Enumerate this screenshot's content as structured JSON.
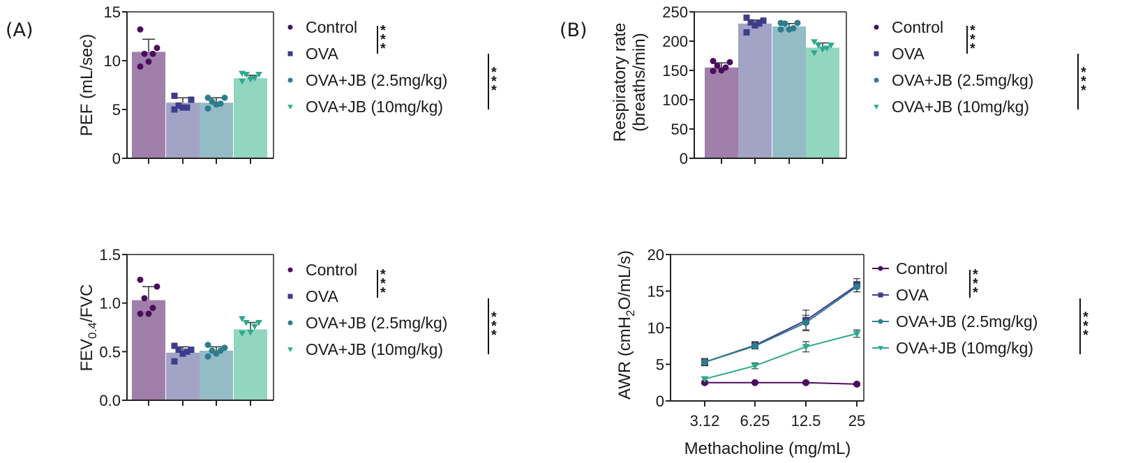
{
  "colors": {
    "Control": {
      "marker": "#4a0d5c",
      "bar": "#a07fab"
    },
    "OVA": {
      "marker": "#3e3d8c",
      "bar": "#a3a3c6"
    },
    "OVA+JB (2.5mg/kg)": {
      "marker": "#2d7d8d",
      "bar": "#94bcc7"
    },
    "OVA+JB (10mg/kg)": {
      "marker": "#2ea98c",
      "bar": "#92d6c0"
    }
  },
  "panel_labels": {
    "a": "(A)",
    "b": "(B)"
  },
  "chart_data": [
    {
      "id": "pef",
      "panel": "A",
      "type": "bar",
      "title": "",
      "ylabel": "PEF (mL/sec)",
      "xlabel": "",
      "ylim": [
        0,
        15
      ],
      "yticks": [
        "0",
        "5",
        "10",
        "15"
      ],
      "categories": [
        "Control",
        "OVA",
        "OVA+JB (2.5mg/kg)",
        "OVA+JB (10mg/kg)"
      ],
      "values": [
        10.9,
        5.7,
        5.7,
        8.2
      ],
      "errors": [
        1.3,
        0.5,
        0.5,
        0.3
      ],
      "points": [
        [
          13.2,
          11.3,
          10.7,
          10.7,
          9.9,
          9.4
        ],
        [
          6.4,
          6.0,
          5.4,
          5.2,
          5.2,
          5.0
        ],
        [
          6.2,
          6.2,
          5.8,
          5.6,
          5.5,
          5.1
        ],
        [
          8.7,
          8.6,
          8.6,
          8.2,
          8.1,
          7.9
        ]
      ],
      "marker_shapes": [
        "circle",
        "square",
        "circle",
        "triangle-down"
      ],
      "legend": [
        "Control",
        "OVA",
        "OVA+JB (2.5mg/kg)",
        "OVA+JB (10mg/kg)"
      ],
      "legend_position": "right",
      "significance": [
        {
          "groups": [
            "Control",
            "OVA"
          ],
          "label": "***"
        },
        {
          "groups": [
            "OVA",
            "OVA+JB (10mg/kg)"
          ],
          "label": "***"
        }
      ]
    },
    {
      "id": "fev",
      "panel": "A",
      "type": "bar",
      "title": "",
      "ylabel": "FEV0.4/FVC",
      "ylabel_main": "FEV",
      "ylabel_sub": "0.4",
      "ylabel_tail": "/FVC",
      "xlabel": "",
      "ylim": [
        0,
        1.5
      ],
      "yticks": [
        "0.0",
        "0.5",
        "1.0",
        "1.5"
      ],
      "categories": [
        "Control",
        "OVA",
        "OVA+JB (2.5mg/kg)",
        "OVA+JB (10mg/kg)"
      ],
      "values": [
        1.03,
        0.49,
        0.51,
        0.73
      ],
      "errors": [
        0.14,
        0.06,
        0.04,
        0.07
      ],
      "points": [
        [
          1.24,
          1.17,
          1.05,
          0.95,
          0.89,
          0.89
        ],
        [
          0.56,
          0.52,
          0.52,
          0.5,
          0.48,
          0.4
        ],
        [
          0.57,
          0.54,
          0.51,
          0.51,
          0.48,
          0.45
        ],
        [
          0.84,
          0.8,
          0.8,
          0.76,
          0.7,
          0.69
        ]
      ],
      "marker_shapes": [
        "circle",
        "square",
        "circle",
        "triangle-down"
      ],
      "legend": [
        "Control",
        "OVA",
        "OVA+JB (2.5mg/kg)",
        "OVA+JB (10mg/kg)"
      ],
      "legend_position": "right",
      "significance": [
        {
          "groups": [
            "Control",
            "OVA"
          ],
          "label": "***"
        },
        {
          "groups": [
            "OVA",
            "OVA+JB (10mg/kg)"
          ],
          "label": "***"
        }
      ]
    },
    {
      "id": "rr",
      "panel": "B",
      "type": "bar",
      "title": "",
      "ylabel": "Respiratory rate (breaths/min)",
      "ylabel_line1": "Respiratory rate",
      "ylabel_line2": "(breaths/min)",
      "xlabel": "",
      "ylim": [
        0,
        250
      ],
      "yticks": [
        "0",
        "50",
        "100",
        "150",
        "200",
        "250"
      ],
      "categories": [
        "Control",
        "OVA",
        "OVA+JB (2.5mg/kg)",
        "OVA+JB (10mg/kg)"
      ],
      "values": [
        155,
        230,
        225,
        189
      ],
      "errors": [
        8,
        6,
        5,
        8
      ],
      "points": [
        [
          166,
          164,
          158,
          155,
          150,
          149
        ],
        [
          240,
          235,
          232,
          230,
          227,
          215
        ],
        [
          231,
          231,
          230,
          222,
          220,
          220
        ],
        [
          199,
          193,
          193,
          188,
          186,
          180
        ]
      ],
      "marker_shapes": [
        "circle",
        "square",
        "circle",
        "triangle-down"
      ],
      "legend": [
        "Control",
        "OVA",
        "OVA+JB (2.5mg/kg)",
        "OVA+JB (10mg/kg)"
      ],
      "legend_position": "right",
      "significance": [
        {
          "groups": [
            "Control",
            "OVA"
          ],
          "label": "***"
        },
        {
          "groups": [
            "OVA",
            "OVA+JB (10mg/kg)"
          ],
          "label": "***"
        }
      ]
    },
    {
      "id": "awr",
      "panel": "B",
      "type": "line",
      "title": "",
      "ylabel": "AWR (cmH2O/mL/s)",
      "ylabel_a": "AWR (cmH",
      "ylabel_sub": "2",
      "ylabel_b": "O/mL/s)",
      "xlabel": "Methacholine (mg/mL)",
      "x": [
        "3.12",
        "6.25",
        "12.5",
        "25"
      ],
      "ylim": [
        0,
        20
      ],
      "yticks": [
        "0",
        "5",
        "10",
        "15",
        "20"
      ],
      "series": [
        {
          "name": "Control",
          "values": [
            2.5,
            2.5,
            2.5,
            2.3
          ],
          "errors": [
            0.2,
            0.15,
            0.15,
            0.15
          ],
          "marker": "circle"
        },
        {
          "name": "OVA",
          "values": [
            5.3,
            7.6,
            11.0,
            15.8
          ],
          "errors": [
            0.5,
            0.5,
            1.4,
            0.9
          ],
          "marker": "square"
        },
        {
          "name": "OVA+JB (2.5mg/kg)",
          "values": [
            5.3,
            7.5,
            10.7,
            15.6
          ],
          "errors": [
            0.4,
            0.4,
            1.0,
            0.7
          ],
          "marker": "circle"
        },
        {
          "name": "OVA+JB (10mg/kg)",
          "values": [
            3.0,
            4.8,
            7.4,
            9.2
          ],
          "errors": [
            0.3,
            0.4,
            0.7,
            0.5
          ],
          "marker": "triangle-down"
        }
      ],
      "legend": [
        "Control",
        "OVA",
        "OVA+JB (2.5mg/kg)",
        "OVA+JB (10mg/kg)"
      ],
      "legend_position": "right",
      "significance": [
        {
          "groups": [
            "Control",
            "OVA"
          ],
          "label": "***"
        },
        {
          "groups": [
            "OVA",
            "OVA+JB (10mg/kg)"
          ],
          "label": "***"
        }
      ]
    }
  ]
}
